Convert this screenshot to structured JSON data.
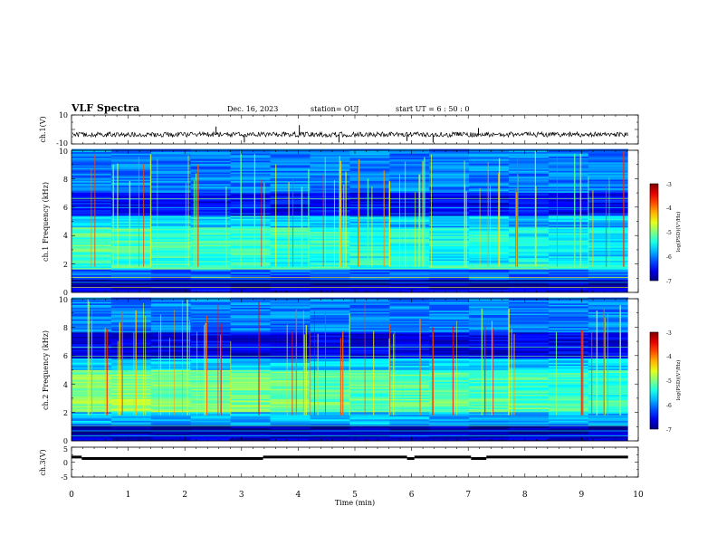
{
  "header": {
    "title": "VLF Spectra",
    "date": "Dec. 16, 2023",
    "station": "station= OUJ",
    "start_time": "start  UT  =   6  : 50 : 0"
  },
  "chart_data": [
    {
      "type": "line",
      "name": "ch1-waveform",
      "ylabel": "ch.1(V)",
      "ylim": [
        -10,
        10
      ],
      "ytick_labels": [
        "10",
        "-10"
      ],
      "xlim": [
        0,
        10
      ],
      "x_extent": [
        0,
        9.82
      ],
      "baseline": -3.5,
      "spikes": [
        {
          "x": 2.55,
          "y": 2
        },
        {
          "x": 4.02,
          "y": 3
        },
        {
          "x": 7.18,
          "y": 1
        },
        {
          "x": 3.05,
          "y": -9
        },
        {
          "x": 4.72,
          "y": -9
        },
        {
          "x": 5.92,
          "y": -8
        },
        {
          "x": 6.38,
          "y": -9
        }
      ]
    },
    {
      "type": "heatmap",
      "name": "ch1-spectrogram",
      "ylabel": "ch.1 Frequency (kHz)",
      "ylim": [
        0,
        10
      ],
      "ytick_labels": [
        "0",
        "2",
        "4",
        "6",
        "8",
        "10"
      ],
      "xlim": [
        0,
        10
      ],
      "x_extent": [
        0,
        9.82
      ],
      "colorbar": {
        "label": "log(PSD)(V²/Hz)",
        "range": [
          -7,
          -3
        ],
        "tick_labels": [
          "-3",
          "-4",
          "-5",
          "-6",
          "-7"
        ]
      },
      "bands_kHz": [
        {
          "from": 0,
          "to": 0.4,
          "level": -6.6
        },
        {
          "from": 0.4,
          "to": 0.9,
          "level": -6.9
        },
        {
          "from": 0.9,
          "to": 1.6,
          "level": -6.1
        },
        {
          "from": 1.6,
          "to": 2.6,
          "level": -5.3
        },
        {
          "from": 2.6,
          "to": 4.6,
          "level": -5.2
        },
        {
          "from": 4.6,
          "to": 5.4,
          "level": -5.6
        },
        {
          "from": 5.4,
          "to": 7.0,
          "level": -6.5
        },
        {
          "from": 7.0,
          "to": 10,
          "level": -6.0
        }
      ]
    },
    {
      "type": "heatmap",
      "name": "ch2-spectrogram",
      "ylabel": "ch.2 Frequency (kHz)",
      "ylim": [
        0,
        10
      ],
      "ytick_labels": [
        "0",
        "2",
        "4",
        "6",
        "8",
        "10"
      ],
      "xlim": [
        0,
        10
      ],
      "x_extent": [
        0,
        9.82
      ],
      "colorbar": {
        "label": "log(PSD)(V²/Hz)",
        "range": [
          -7,
          -3
        ],
        "tick_labels": [
          "-3",
          "-4",
          "-5",
          "-6",
          "-7"
        ]
      },
      "bands_kHz": [
        {
          "from": 0,
          "to": 0.5,
          "level": -6.7
        },
        {
          "from": 0.5,
          "to": 1.1,
          "level": -6.9
        },
        {
          "from": 1.1,
          "to": 2.0,
          "level": -5.8
        },
        {
          "from": 2.0,
          "to": 3.0,
          "level": -4.9
        },
        {
          "from": 3.0,
          "to": 5.0,
          "level": -5.0
        },
        {
          "from": 5.0,
          "to": 5.8,
          "level": -5.7
        },
        {
          "from": 5.8,
          "to": 7.6,
          "level": -6.6
        },
        {
          "from": 7.6,
          "to": 10,
          "level": -6.0
        }
      ]
    },
    {
      "type": "line",
      "name": "ch3-status",
      "ylabel": "ch.3(V)",
      "ylim": [
        -5,
        5
      ],
      "ytick_labels": [
        "5",
        "0",
        "-5"
      ],
      "xlim": [
        0,
        10
      ],
      "xlabel": "Time  (min)",
      "xtick_labels": [
        "0",
        "1",
        "2",
        "3",
        "4",
        "5",
        "6",
        "7",
        "8",
        "9",
        "10"
      ],
      "segments": [
        {
          "x0": 0.0,
          "x1": 0.18,
          "y": 1.7
        },
        {
          "x0": 0.18,
          "x1": 3.38,
          "y": 1.2
        },
        {
          "x0": 3.38,
          "x1": 5.92,
          "y": 1.7
        },
        {
          "x0": 5.92,
          "x1": 6.05,
          "y": 1.2
        },
        {
          "x0": 6.05,
          "x1": 7.05,
          "y": 1.7
        },
        {
          "x0": 7.05,
          "x1": 7.32,
          "y": 1.2
        },
        {
          "x0": 7.32,
          "x1": 9.82,
          "y": 1.7
        }
      ]
    }
  ]
}
